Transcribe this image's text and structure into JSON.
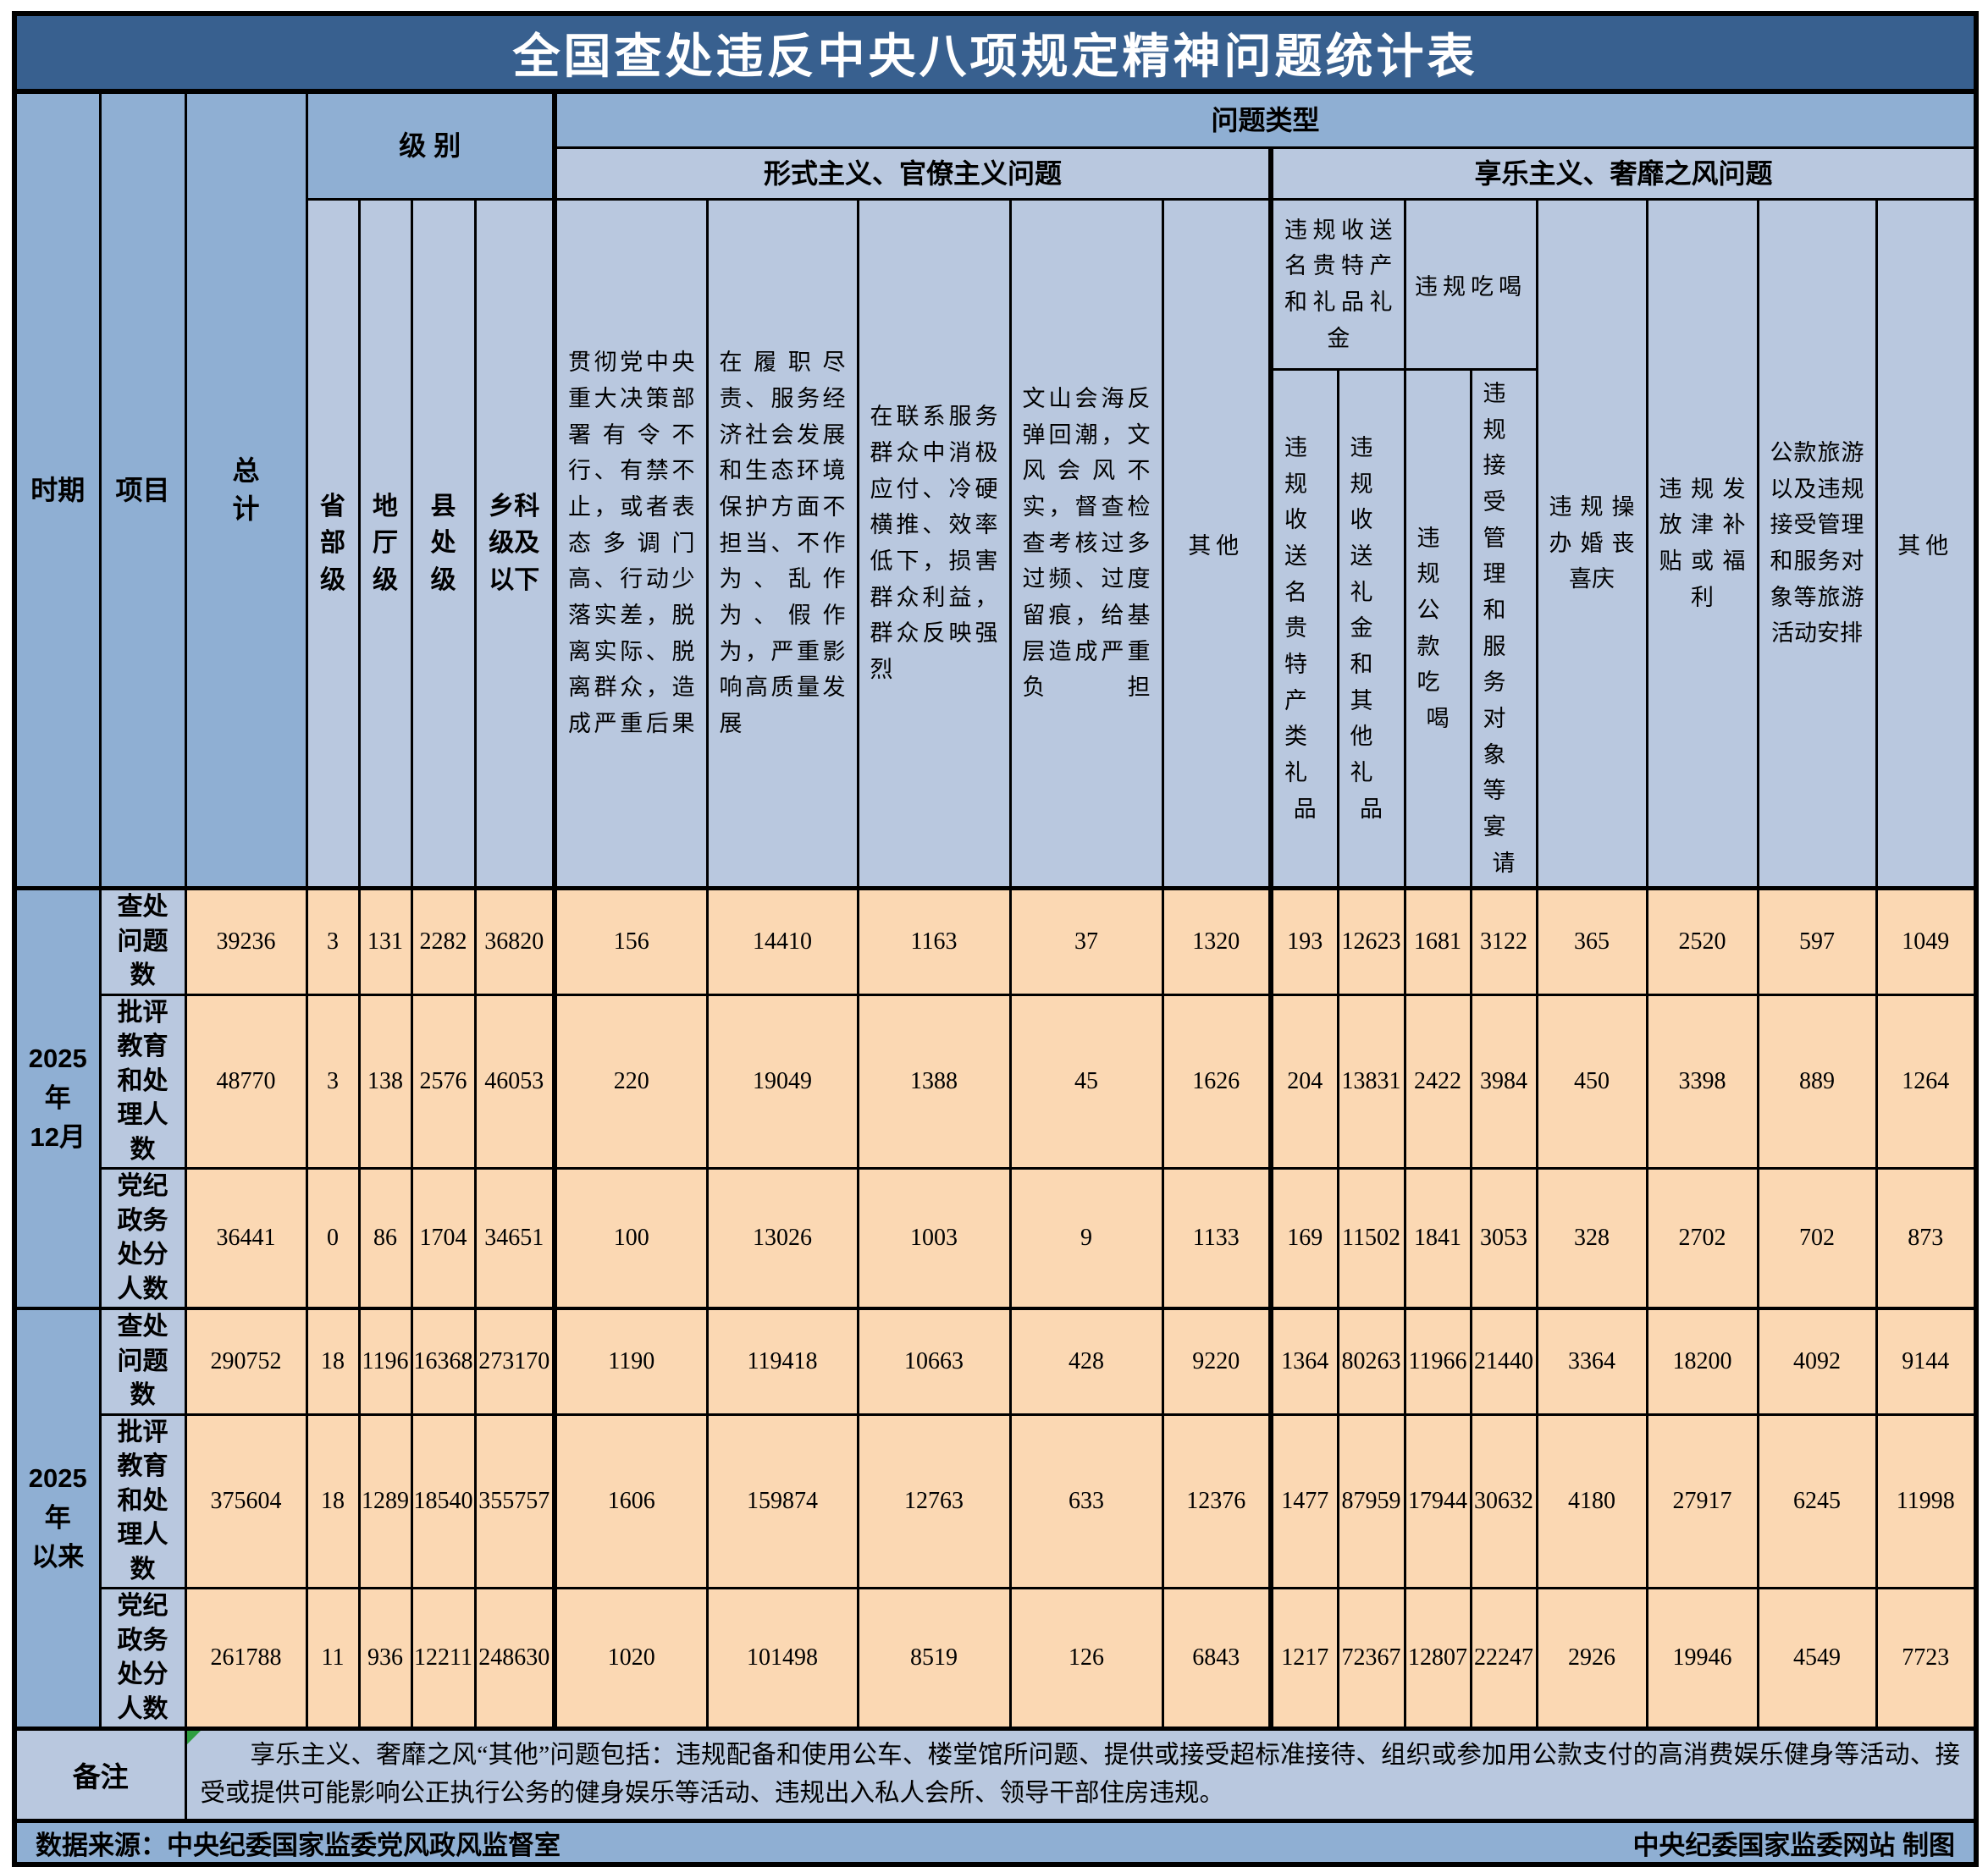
{
  "title": "全国查处违反中央八项规定精神问题统计表",
  "header": {
    "period_label": "时期",
    "item_label": "项目",
    "total_label_lines": [
      "总",
      "计"
    ],
    "level": {
      "label": "级 别",
      "sub": [
        "省部级",
        "地厅级",
        "县处级",
        "乡科级及以下"
      ]
    },
    "problem_type_label": "问题类型",
    "formalism": {
      "group_label": "形式主义、官僚主义问题",
      "cols": [
        "贯彻党中央重大决策部署有令不行、有禁不止，或者表态多调门高、行动少落实差，脱离实际、脱离群众，造成严重后果",
        "在履职尽责、服务经济社会发展和生态环境保护方面不担当、不作为、乱作为、假作为，严重影响高质量发展",
        "在联系服务群众中消极应付、冷硬横推、效率低下，损害群众利益，群众反映强烈",
        "文山会海反弹回潮，文风会风不实，督查检查考核过多过频、过度留痕，给基层造成严重负担",
        "其他"
      ]
    },
    "hedonism": {
      "group_label": "享乐主义、奢靡之风问题",
      "gifts_parent": "违规收送名贵特产和礼品礼金",
      "gifts_sub": [
        "违规收送名贵特产类礼品",
        "违规收送礼金和其他礼品"
      ],
      "dining_parent": "违规吃喝",
      "dining_sub": [
        "违规公款吃喝",
        "违规接受管理和服务对象等宴请"
      ],
      "wedding_funeral": "违规操办婚丧喜庆",
      "allowance_welfare": "违规发放津补贴或福利",
      "public_travel": "公款旅游以及违规接受管理和服务对象等旅游活动安排",
      "other": "其他"
    }
  },
  "chart_data": {
    "type": "table",
    "title": "全国查处违反中央八项规定精神问题统计表",
    "columns": [
      "总计",
      "省部级",
      "地厅级",
      "县处级",
      "乡科级及以下",
      "贯彻党中央重大决策部署有令不行、有禁不止，或者表态多调门高、行动少落实差，脱离实际、脱离群众，造成严重后果",
      "在履职尽责、服务经济社会发展和生态环境保护方面不担当、不作为、乱作为、假作为，严重影响高质量发展",
      "在联系服务群众中消极应付、冷硬横推、效率低下，损害群众利益，群众反映强烈",
      "文山会海反弹回潮，文风会风不实，督查检查考核过多过频、过度留痕，给基层造成严重负担",
      "形式主义其他",
      "违规收送名贵特产类礼品",
      "违规收送礼金和其他礼品",
      "违规公款吃喝",
      "违规接受管理和服务对象等宴请",
      "违规操办婚丧喜庆",
      "违规发放津补贴或福利",
      "公款旅游以及违规接受管理和服务对象等旅游活动安排",
      "享乐主义其他"
    ],
    "rows": [
      {
        "period": "2025年12月",
        "period_lines": [
          "2025年",
          "12月"
        ],
        "label": "查处问题数",
        "values": [
          39236,
          3,
          131,
          2282,
          36820,
          156,
          14410,
          1163,
          37,
          1320,
          193,
          12623,
          1681,
          3122,
          365,
          2520,
          597,
          1049
        ]
      },
      {
        "period": "2025年12月",
        "label": "批评教育和处理人数",
        "values": [
          48770,
          3,
          138,
          2576,
          46053,
          220,
          19049,
          1388,
          45,
          1626,
          204,
          13831,
          2422,
          3984,
          450,
          3398,
          889,
          1264
        ]
      },
      {
        "period": "2025年12月",
        "label": "党纪政务处分人数",
        "values": [
          36441,
          0,
          86,
          1704,
          34651,
          100,
          13026,
          1003,
          9,
          1133,
          169,
          11502,
          1841,
          3053,
          328,
          2702,
          702,
          873
        ]
      },
      {
        "period": "2025年以来",
        "period_lines": [
          "2025年",
          "以来"
        ],
        "label": "查处问题数",
        "values": [
          290752,
          18,
          1196,
          16368,
          273170,
          1190,
          119418,
          10663,
          428,
          9220,
          1364,
          80263,
          11966,
          21440,
          3364,
          18200,
          4092,
          9144
        ]
      },
      {
        "period": "2025年以来",
        "label": "批评教育和处理人数",
        "values": [
          375604,
          18,
          1289,
          18540,
          355757,
          1606,
          159874,
          12763,
          633,
          12376,
          1477,
          87959,
          17944,
          30632,
          4180,
          27917,
          6245,
          11998
        ]
      },
      {
        "period": "2025年以来",
        "label": "党纪政务处分人数",
        "values": [
          261788,
          11,
          936,
          12211,
          248630,
          1020,
          101498,
          8519,
          126,
          6843,
          1217,
          72367,
          12807,
          22247,
          2926,
          19946,
          4549,
          7723
        ]
      }
    ]
  },
  "remark": {
    "label": "备注",
    "text": "享乐主义、奢靡之风“其他”问题包括：违规配备和使用公车、楼堂馆所问题、提供或接受超标准接待、组织或参加用公款支付的高消费娱乐健身等活动、接受或提供可能影响公正执行公务的健身娱乐等活动、违规出入私人会所、领导干部住房违规。"
  },
  "footer": {
    "source": "数据来源：中央纪委国家监委党风政风监督室",
    "credit": "中央纪委国家监委网站 制图"
  },
  "colors": {
    "title_bg": "#38608F",
    "header_medium": "#8FAFD3",
    "header_light": "#B9C8DF",
    "cell_peach": "#FBD8B3",
    "border": "#000000",
    "flag_green": "#2E9E3F",
    "title_text": "#FFFFFF"
  }
}
